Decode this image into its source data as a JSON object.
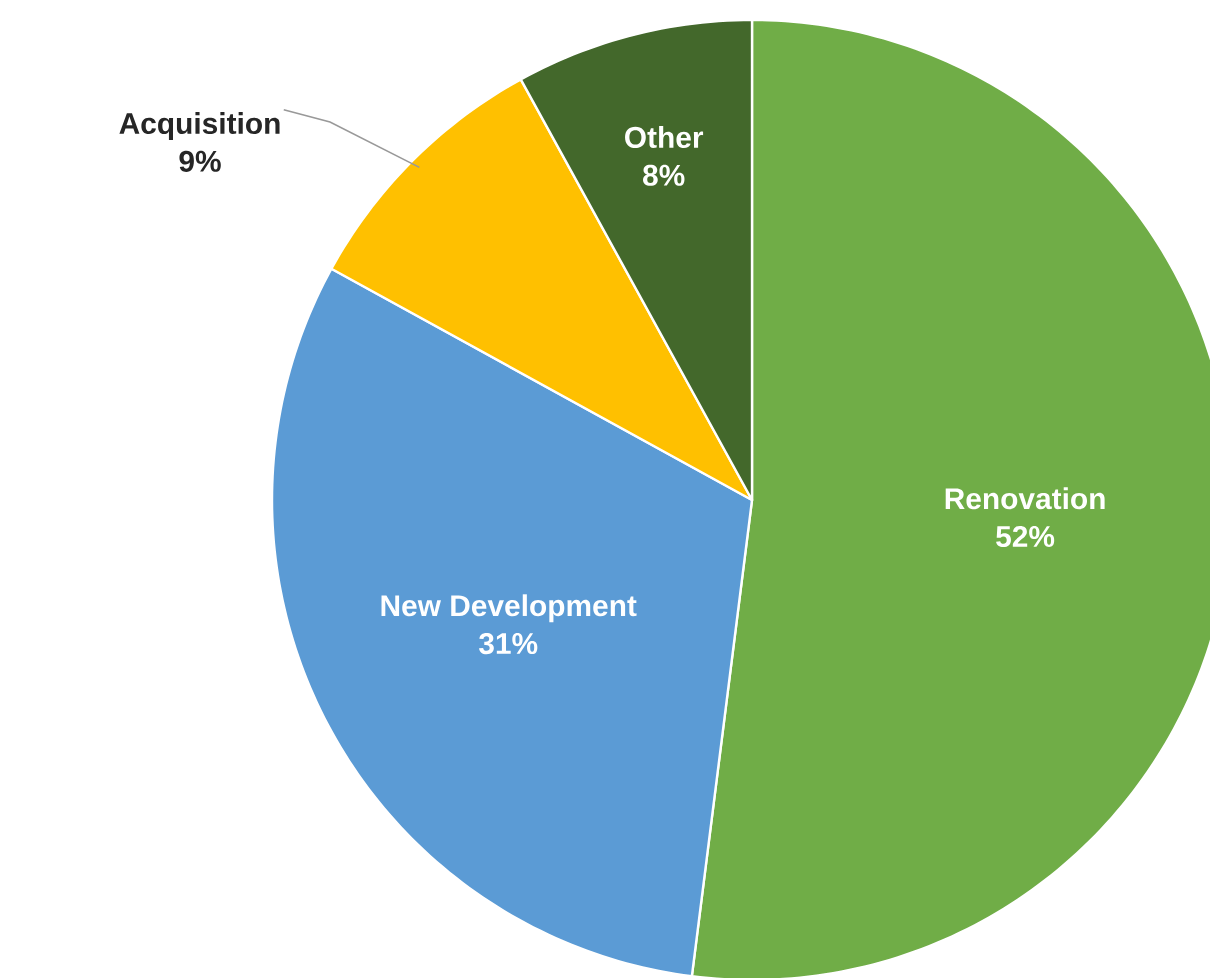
{
  "chart_data": {
    "type": "pie",
    "categories": [
      "Renovation",
      "New Development",
      "Acquisition",
      "Other"
    ],
    "values": [
      52,
      31,
      9,
      8
    ],
    "value_labels": [
      "52%",
      "31%",
      "9%",
      "8%"
    ],
    "colors": [
      "#70ad47",
      "#5b9bd5",
      "#ffc000",
      "#43682b"
    ]
  }
}
